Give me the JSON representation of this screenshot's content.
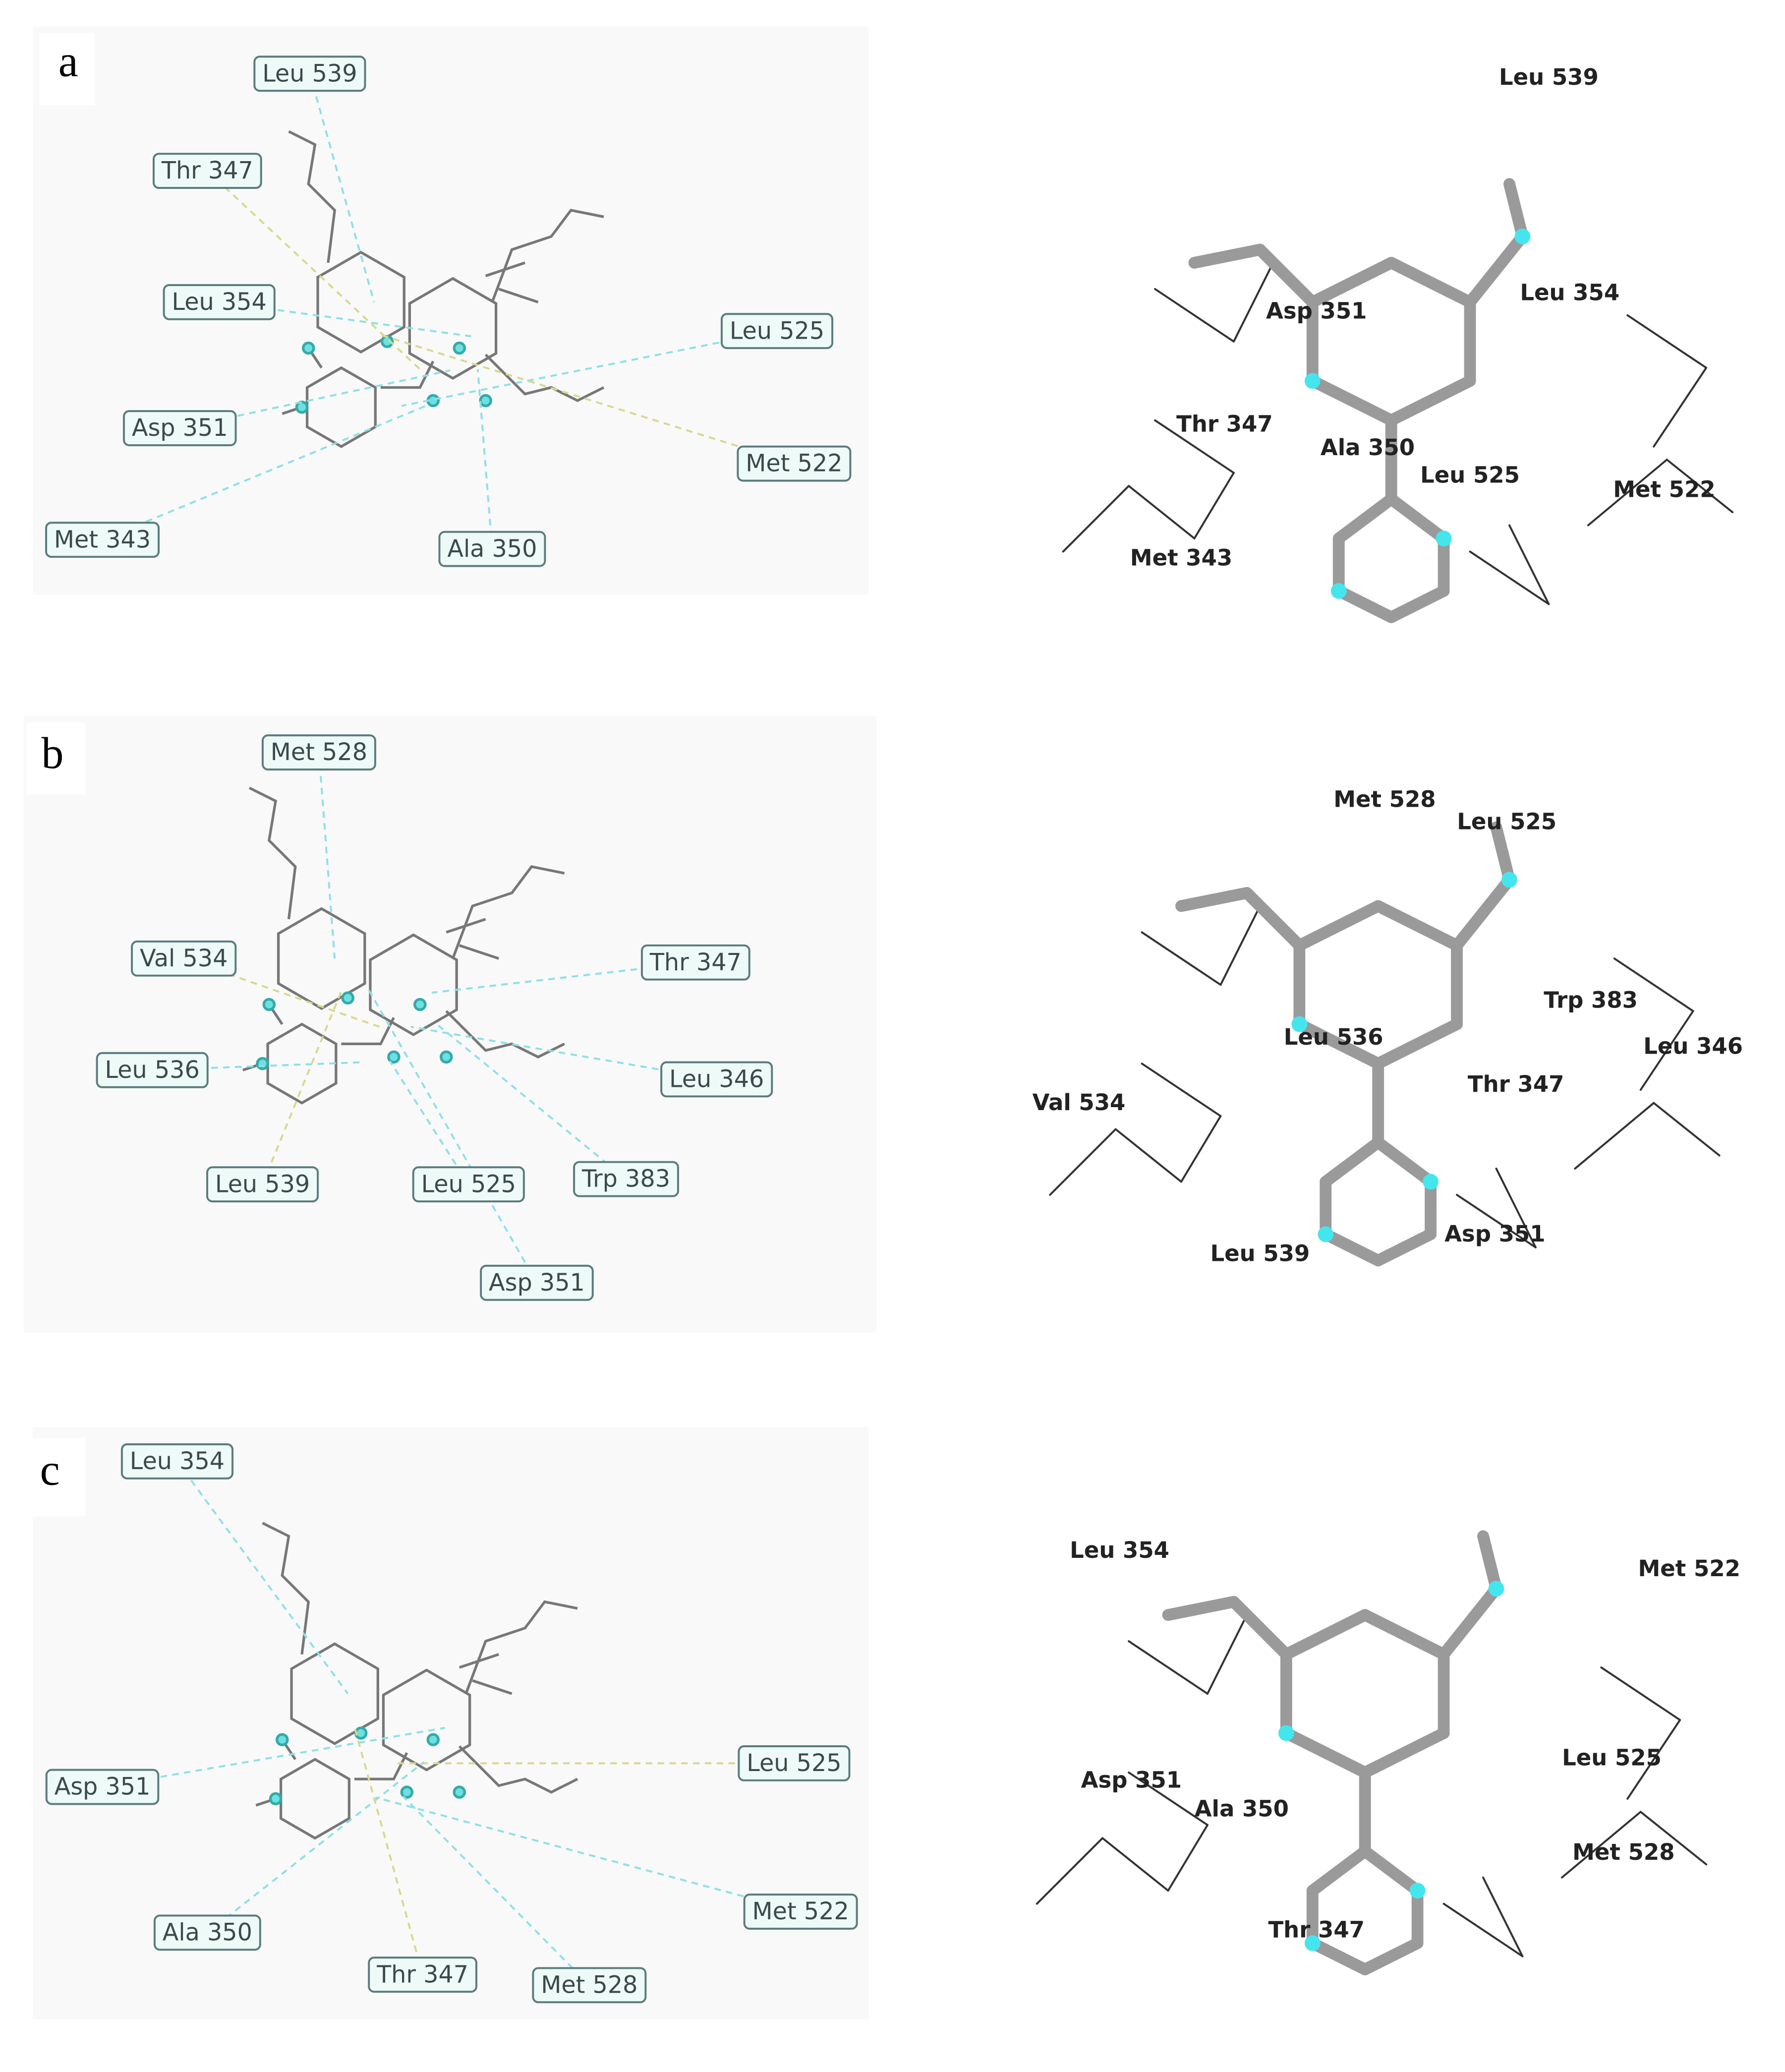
{
  "panels": [
    {
      "letter": "a",
      "diagram_labels": [
        "Leu 539",
        "Thr 347",
        "Leu 354",
        "Leu 525",
        "Asp 351",
        "Met 522",
        "Met 343",
        "Ala 350"
      ],
      "structure_labels": [
        "Leu 539",
        "Asp 351",
        "Leu 354",
        "Thr 347",
        "Ala 350",
        "Leu 525",
        "Met 522",
        "Met 343"
      ]
    },
    {
      "letter": "b",
      "diagram_labels": [
        "Met 528",
        "Val 534",
        "Thr 347",
        "Leu 536",
        "Leu 346",
        "Leu 539",
        "Leu 525",
        "Trp 383",
        "Asp 351"
      ],
      "structure_labels": [
        "Met 528",
        "Leu 525",
        "Trp 383",
        "Leu 346",
        "Leu 536",
        "Thr 347",
        "Val 534",
        "Leu 539",
        "Asp 351"
      ]
    },
    {
      "letter": "c",
      "diagram_labels": [
        "Leu 354",
        "Leu 525",
        "Asp 351",
        "Met 522",
        "Ala 350",
        "Thr 347",
        "Met 528"
      ],
      "structure_labels": [
        "Leu 354",
        "Met 522",
        "Asp 351",
        "Ala 350",
        "Leu 525",
        "Met 528",
        "Thr 347"
      ]
    }
  ]
}
